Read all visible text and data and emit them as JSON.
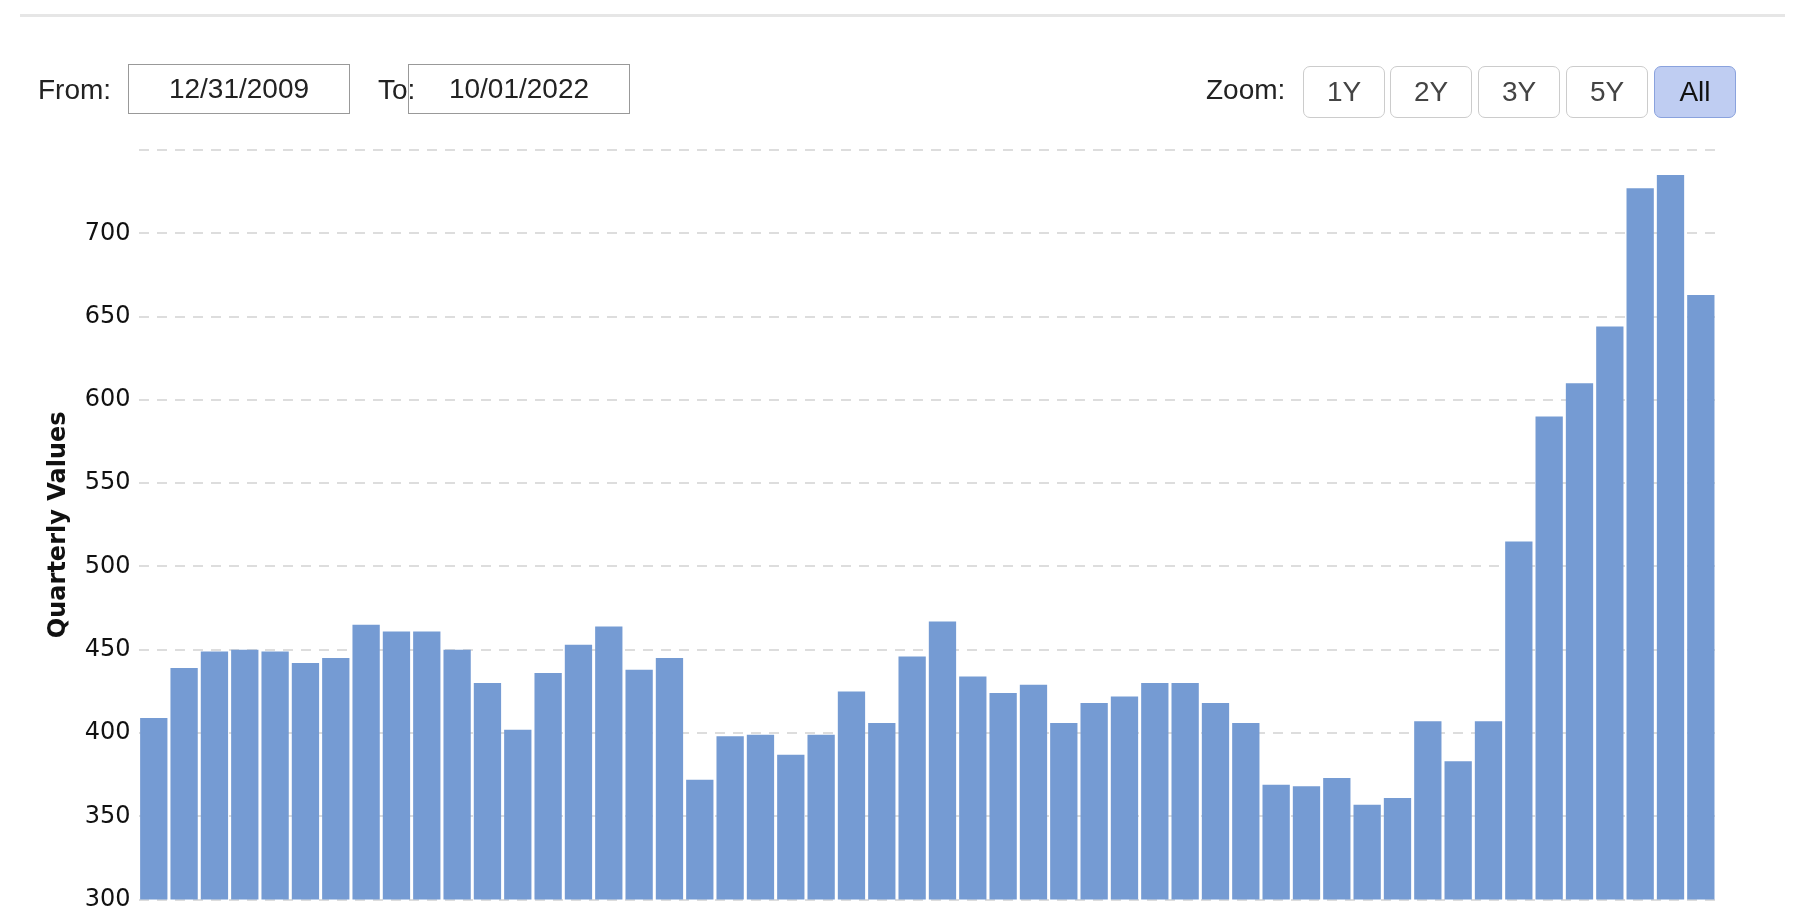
{
  "chart_data": {
    "type": "bar",
    "ylabel": "Quarterly Values",
    "categories": [
      null,
      null,
      null,
      null,
      null,
      null,
      null,
      null,
      null,
      null,
      null,
      null,
      null,
      null,
      null,
      null,
      null,
      null,
      null,
      null,
      null,
      null,
      null,
      null,
      null,
      null,
      null,
      null,
      null,
      null,
      null,
      null,
      null,
      null,
      null,
      null,
      null,
      null,
      null,
      null,
      null,
      null,
      null,
      null,
      null,
      null,
      null,
      null,
      null,
      null,
      null,
      null
    ],
    "values": [
      409,
      439,
      449,
      450,
      449,
      442,
      445,
      465,
      461,
      461,
      450,
      430,
      402,
      436,
      453,
      464,
      438,
      445,
      372,
      398,
      399,
      387,
      399,
      425,
      406,
      446,
      467,
      434,
      424,
      429,
      406,
      418,
      422,
      430,
      430,
      418,
      406,
      369,
      368,
      373,
      357,
      361,
      407,
      383,
      407,
      515,
      590,
      610,
      644,
      727,
      735,
      663
    ],
    "color": "#759bd3",
    "ylim": [
      300,
      750
    ],
    "yticks": [
      300,
      350,
      400,
      450,
      500,
      550,
      600,
      650,
      700,
      {
        "value": 750,
        "label": null
      }
    ],
    "grid": "y",
    "annotations": [
      "From:",
      "12/31/2009",
      "To:",
      "10/01/2022",
      "Zoom:",
      "1Y",
      "2Y",
      "3Y",
      "5Y",
      "All"
    ]
  }
}
